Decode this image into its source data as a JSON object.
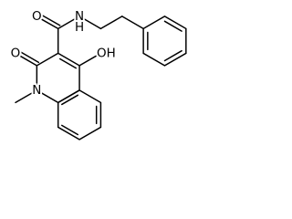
{
  "atoms": [
    "O",
    "N",
    "H",
    "OH",
    "O",
    "N"
  ]
}
